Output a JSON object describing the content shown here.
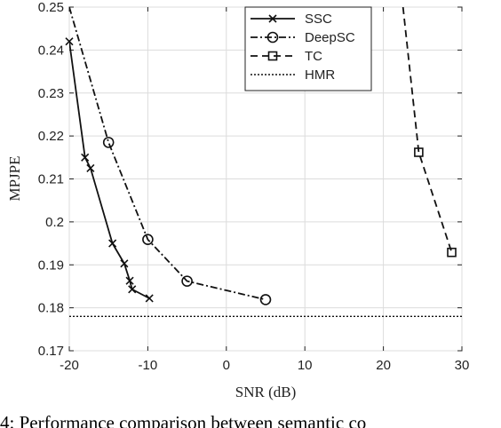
{
  "chart_data": {
    "type": "line",
    "xlabel": "SNR (dB)",
    "ylabel": "MPJPE",
    "xlim": [
      -20,
      30
    ],
    "ylim": [
      0.17,
      0.25
    ],
    "xticks": [
      -20,
      -10,
      0,
      10,
      20,
      30
    ],
    "xtick_labels": [
      "-20",
      "-10",
      "0",
      "10",
      "20",
      "30"
    ],
    "yticks": [
      0.17,
      0.18,
      0.19,
      0.2,
      0.21,
      0.22,
      0.23,
      0.24,
      0.25
    ],
    "ytick_labels": [
      "0.17",
      "0.18",
      "0.19",
      "0.2",
      "0.21",
      "0.22",
      "0.23",
      "0.24",
      "0.25"
    ],
    "grid": true,
    "legend_position": "top-right",
    "series": [
      {
        "name": "SSC",
        "line": "solid",
        "marker": "x",
        "x": [
          -20,
          -18,
          -17.3,
          -14.5,
          -13,
          -12.3,
          -12,
          -9.8
        ],
        "y": [
          0.242,
          0.215,
          0.2125,
          0.195,
          0.1903,
          0.1863,
          0.1843,
          0.1822
        ]
      },
      {
        "name": "DeepSC",
        "line": "dashdot",
        "marker": "circle",
        "x": [
          -20,
          -15,
          -10,
          -5,
          5
        ],
        "y": [
          0.25,
          0.2185,
          0.1959,
          0.1862,
          0.1819
        ]
      },
      {
        "name": "TC",
        "line": "dashed",
        "marker": "square",
        "x": [
          22.5,
          24.5,
          28.7
        ],
        "y": [
          0.25,
          0.2162,
          0.1929
        ]
      },
      {
        "name": "HMR",
        "line": "dotted",
        "marker": "none",
        "x": [
          -20,
          30
        ],
        "y": [
          0.178,
          0.178
        ]
      }
    ]
  },
  "caption": "4: Performance comparison between semantic co"
}
